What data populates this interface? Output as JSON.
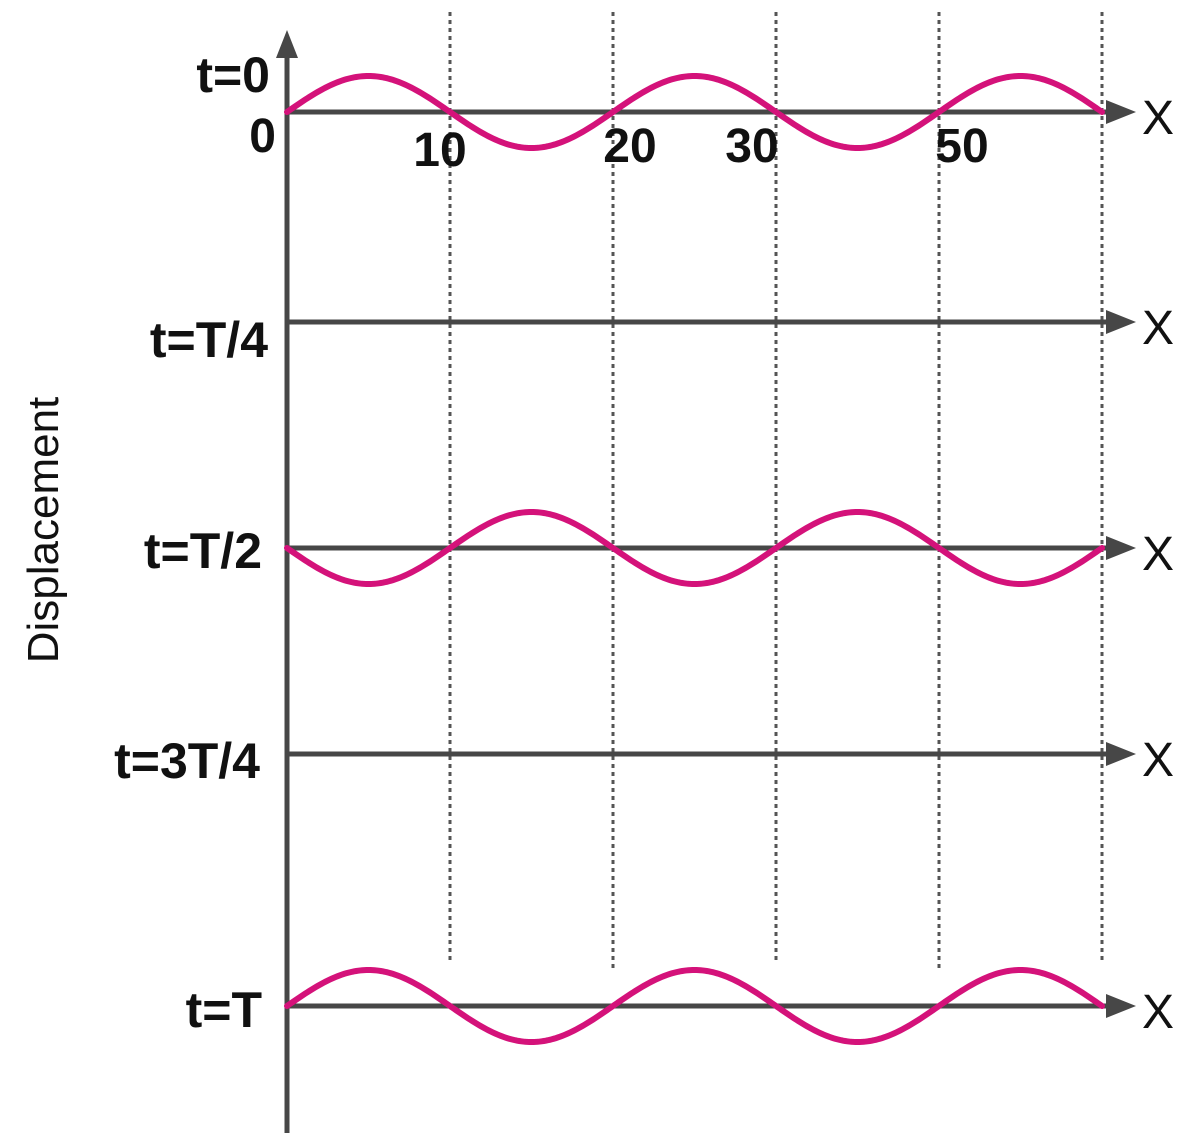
{
  "y_axis_title": "Displacement",
  "origin_label": "0",
  "x_tick_labels": [
    "10",
    "20",
    "30",
    "50"
  ],
  "guide_positions": [
    10,
    20,
    30,
    40,
    50
  ],
  "wave_span": [
    0,
    50
  ],
  "wave_period": 20,
  "rows": [
    {
      "label": "t=0",
      "axis_label": "X",
      "phase": 0
    },
    {
      "label": "t=T/4",
      "axis_label": "X",
      "phase": null
    },
    {
      "label": "t=T/2",
      "axis_label": "X",
      "phase": 0.5
    },
    {
      "label": "t=3T/4",
      "axis_label": "X",
      "phase": null
    },
    {
      "label": "t=T",
      "axis_label": "X",
      "phase": 0
    }
  ],
  "colors": {
    "wave": "#d4127a",
    "axis": "#474747",
    "guides": "#555555"
  }
}
